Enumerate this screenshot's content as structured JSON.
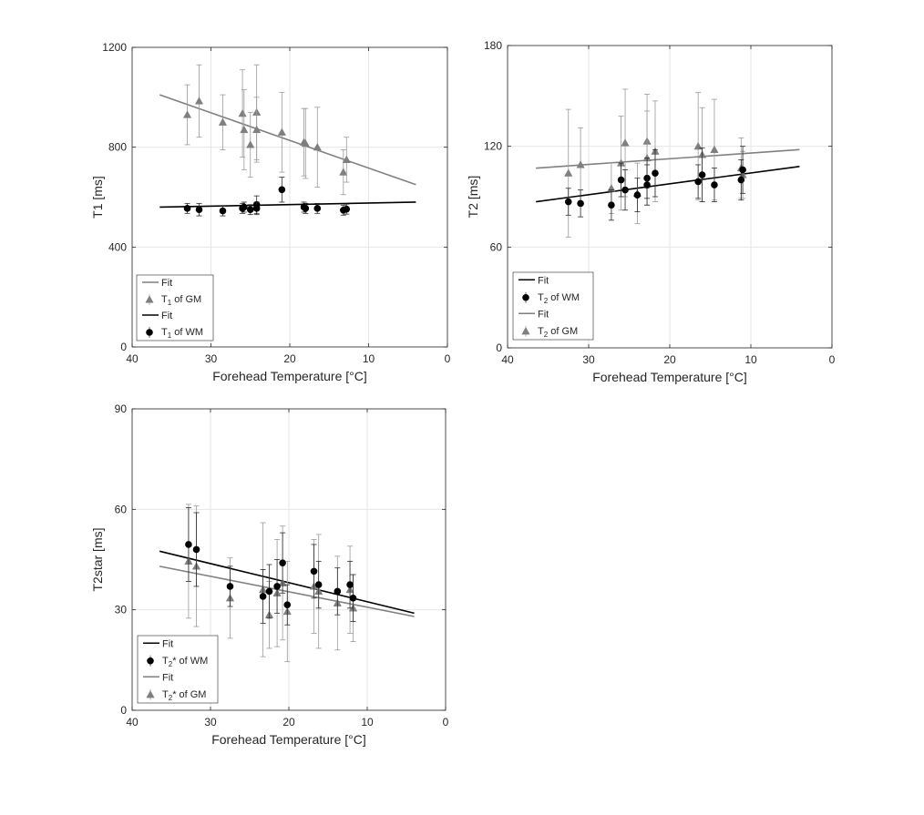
{
  "figure": {
    "background": "#ffffff"
  },
  "colors": {
    "gm": "#7f7f7f",
    "wm": "#000000",
    "gm_fit": "#808080",
    "wm_fit": "#000000",
    "grid": "#e6e6e6",
    "axes": "#262626"
  },
  "chart_data": [
    {
      "id": "t1",
      "type": "scatter",
      "title": "",
      "xlabel": "Forehead Temperature [°C]",
      "ylabel": "T1 [ms]",
      "xlim": [
        40,
        0
      ],
      "ylim": [
        0,
        1200
      ],
      "xticks": [
        40,
        30,
        20,
        10,
        0
      ],
      "yticks": [
        0,
        400,
        800,
        1200
      ],
      "xtick_labels": [
        "40",
        "30",
        "20",
        "10",
        "0"
      ],
      "ytick_labels": [
        "0",
        "400",
        "800",
        "1200"
      ],
      "grid": true,
      "legend_position": "bottom-left",
      "legend": [
        {
          "label": "Fit",
          "kind": "line",
          "series": "gm"
        },
        {
          "label": "T",
          "sub": "1",
          "tail": " of GM",
          "kind": "triangle",
          "series": "gm"
        },
        {
          "label": "Fit",
          "kind": "line",
          "series": "wm"
        },
        {
          "label": "T",
          "sub": "1",
          "tail": " of WM",
          "kind": "circle",
          "series": "wm"
        }
      ],
      "series": [
        {
          "name": "T1 of GM",
          "key": "gm",
          "marker": "triangle",
          "x": [
            33,
            31.5,
            28.5,
            26,
            25.8,
            25,
            24.2,
            24.2,
            21,
            18.2,
            18,
            16.5,
            13.2,
            12.8
          ],
          "y": [
            930,
            985,
            900,
            935,
            870,
            810,
            940,
            870,
            860,
            820,
            815,
            800,
            700,
            750
          ],
          "err": [
            120,
            145,
            110,
            175,
            160,
            130,
            190,
            130,
            160,
            135,
            140,
            160,
            90,
            90
          ]
        },
        {
          "name": "T1 of WM",
          "key": "wm",
          "marker": "circle",
          "x": [
            33,
            31.5,
            28.5,
            26,
            25.8,
            25,
            24.2,
            24.2,
            21,
            18.2,
            18,
            16.5,
            13.2,
            12.8
          ],
          "y": [
            555,
            550,
            545,
            555,
            560,
            550,
            570,
            555,
            630,
            560,
            555,
            555,
            548,
            552
          ],
          "err": [
            20,
            25,
            20,
            20,
            20,
            20,
            35,
            25,
            50,
            20,
            20,
            20,
            20,
            20
          ]
        }
      ],
      "fits": [
        {
          "name": "Fit GM",
          "key": "gm_fit",
          "x": [
            36.5,
            4
          ],
          "y": [
            1010,
            650
          ]
        },
        {
          "name": "Fit WM",
          "key": "wm_fit",
          "x": [
            36.5,
            4
          ],
          "y": [
            560,
            580
          ]
        }
      ]
    },
    {
      "id": "t2",
      "type": "scatter",
      "title": "",
      "xlabel": "Forehead Temperature [°C]",
      "ylabel": "T2 [ms]",
      "xlim": [
        40,
        0
      ],
      "ylim": [
        0,
        180
      ],
      "xticks": [
        40,
        30,
        20,
        10,
        0
      ],
      "yticks": [
        0,
        60,
        120,
        180
      ],
      "xtick_labels": [
        "40",
        "30",
        "20",
        "10",
        "0"
      ],
      "ytick_labels": [
        "0",
        "60",
        "120",
        "180"
      ],
      "grid": true,
      "legend_position": "bottom-left",
      "legend": [
        {
          "label": "Fit",
          "kind": "line",
          "series": "wm"
        },
        {
          "label": "T",
          "sub": "2",
          "tail": " of WM",
          "kind": "circle",
          "series": "wm"
        },
        {
          "label": "Fit",
          "kind": "line",
          "series": "gm"
        },
        {
          "label": "T",
          "sub": "2",
          "tail": " of GM",
          "kind": "triangle",
          "series": "gm"
        }
      ],
      "series": [
        {
          "name": "T2 of GM",
          "key": "gm",
          "marker": "triangle",
          "x": [
            32.5,
            31,
            27.2,
            26,
            25.5,
            24,
            22.8,
            22.8,
            21.8,
            16.5,
            16,
            14.5,
            11.2,
            11
          ],
          "y": [
            104,
            109,
            95,
            110,
            122,
            92,
            123,
            113,
            117,
            120,
            115,
            118,
            107,
            103
          ],
          "err": [
            38,
            22,
            15,
            28,
            32,
            18,
            28,
            28,
            30,
            32,
            28,
            30,
            18,
            14
          ]
        },
        {
          "name": "T2 of WM",
          "key": "wm",
          "marker": "circle",
          "x": [
            32.5,
            31,
            27.2,
            26,
            25.5,
            24,
            22.8,
            22.8,
            21.8,
            16.5,
            16,
            14.5,
            11.2,
            11
          ],
          "y": [
            87,
            86,
            85,
            100,
            94,
            91,
            101,
            97,
            104,
            99,
            103,
            97,
            100,
            106
          ],
          "err": [
            8,
            8,
            9,
            10,
            12,
            10,
            12,
            12,
            14,
            10,
            16,
            10,
            12,
            14
          ]
        }
      ],
      "fits": [
        {
          "name": "Fit GM",
          "key": "gm_fit",
          "x": [
            36.5,
            4
          ],
          "y": [
            107,
            118
          ]
        },
        {
          "name": "Fit WM",
          "key": "wm_fit",
          "x": [
            36.5,
            4
          ],
          "y": [
            87,
            108
          ]
        }
      ]
    },
    {
      "id": "t2star",
      "type": "scatter",
      "title": "",
      "xlabel": "Forehead Temperature [°C]",
      "ylabel": "T2star [ms]",
      "xlim": [
        40,
        0
      ],
      "ylim": [
        0,
        90
      ],
      "xticks": [
        40,
        30,
        20,
        10,
        0
      ],
      "yticks": [
        0,
        30,
        60,
        90
      ],
      "xtick_labels": [
        "40",
        "30",
        "20",
        "10",
        "0"
      ],
      "ytick_labels": [
        "0",
        "30",
        "60",
        "90"
      ],
      "grid": true,
      "legend_position": "bottom-left",
      "legend": [
        {
          "label": "Fit",
          "kind": "line",
          "series": "wm"
        },
        {
          "label": "T",
          "sub": "2",
          "tail": "* of WM",
          "kind": "circle",
          "series": "wm"
        },
        {
          "label": "Fit",
          "kind": "line",
          "series": "gm"
        },
        {
          "label": "T",
          "sub": "2",
          "tail": "* of GM",
          "kind": "triangle",
          "series": "gm"
        }
      ],
      "series": [
        {
          "name": "T2* of GM",
          "key": "gm",
          "marker": "triangle",
          "x": [
            32.8,
            31.8,
            27.5,
            23.3,
            22.5,
            21.5,
            20.8,
            20.2,
            16.8,
            16.2,
            13.8,
            12.2,
            11.8
          ],
          "y": [
            44.5,
            43,
            33.5,
            36,
            28.5,
            35,
            38,
            29.5,
            37,
            35.5,
            32,
            36,
            30.5
          ],
          "err": [
            17,
            18,
            12,
            20,
            10,
            16,
            17,
            15,
            14,
            17,
            14,
            13,
            10
          ]
        },
        {
          "name": "T2* of WM",
          "key": "wm",
          "marker": "circle",
          "x": [
            32.8,
            31.8,
            27.5,
            23.3,
            22.5,
            21.5,
            20.8,
            20.2,
            16.8,
            16.2,
            13.8,
            12.2,
            11.8
          ],
          "y": [
            49.5,
            48,
            37,
            34,
            35.5,
            37,
            44,
            31.5,
            41.5,
            37.5,
            35.5,
            37.5,
            33.5
          ],
          "err": [
            11,
            11,
            6,
            8,
            8,
            8,
            9,
            6,
            8,
            7,
            7,
            7,
            7
          ]
        }
      ],
      "fits": [
        {
          "name": "Fit WM",
          "key": "wm_fit",
          "x": [
            36.5,
            4
          ],
          "y": [
            47.5,
            29
          ]
        },
        {
          "name": "Fit GM",
          "key": "gm_fit",
          "x": [
            36.5,
            4
          ],
          "y": [
            43,
            28
          ]
        }
      ]
    }
  ]
}
